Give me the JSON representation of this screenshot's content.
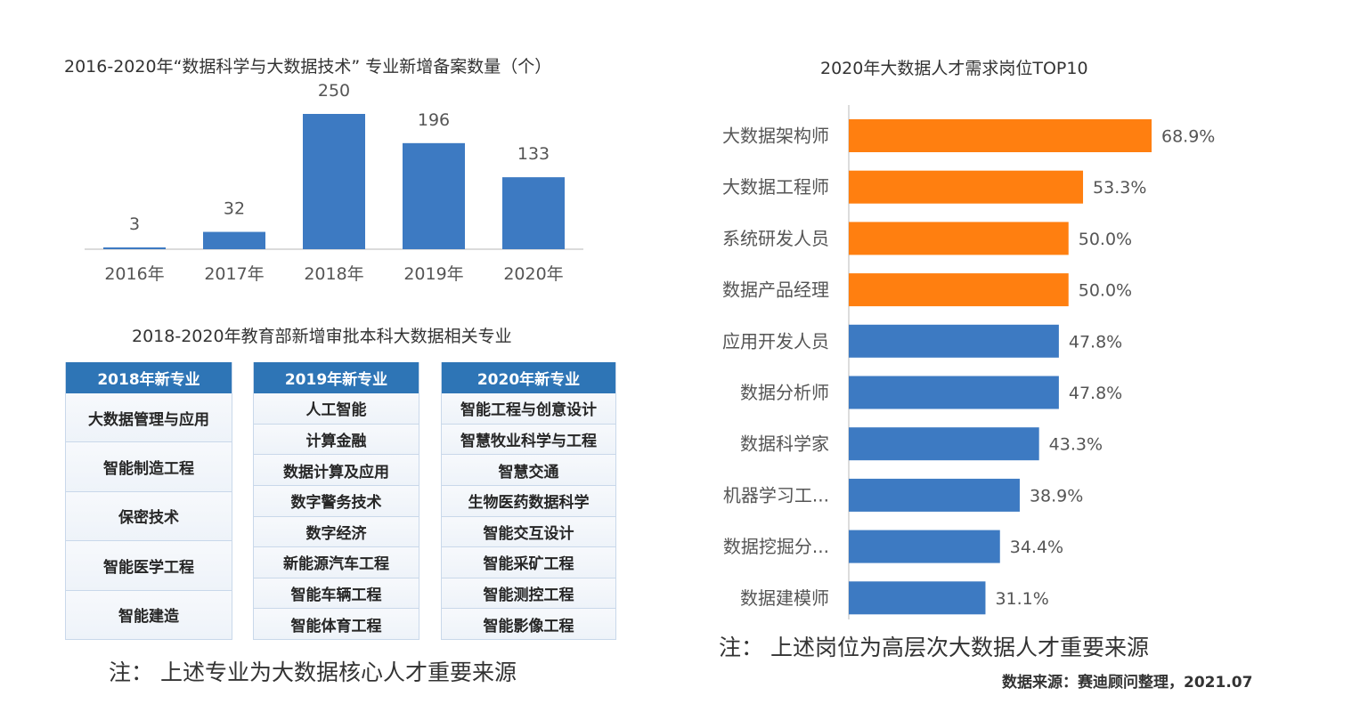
{
  "chart_data": [
    {
      "type": "bar",
      "title": "2016-2020年“数据科学与大数据技术” 专业新增备案数量（个）",
      "categories": [
        "2016年",
        "2017年",
        "2018年",
        "2019年",
        "2020年"
      ],
      "values": [
        3,
        32,
        250,
        196,
        133
      ],
      "value_labels": [
        "3",
        "32",
        "250",
        "196",
        "133"
      ],
      "ylim": [
        0,
        250
      ],
      "grid": false,
      "bar_color": "#3d7ac2"
    },
    {
      "type": "bar",
      "orientation": "horizontal",
      "title": "2020年大数据人才需求岗位TOP10",
      "categories": [
        "大数据架构师",
        "大数据工程师",
        "系统研发人员",
        "数据产品经理",
        "应用开发人员",
        "数据分析师",
        "数据科学家",
        "机器学习工...",
        "数据挖掘分...",
        "数据建模师"
      ],
      "values": [
        68.9,
        53.3,
        50.0,
        50.0,
        47.8,
        47.8,
        43.3,
        38.9,
        34.4,
        31.1
      ],
      "value_labels": [
        "68.9%",
        "53.3%",
        "50.0%",
        "50.0%",
        "47.8%",
        "47.8%",
        "43.3%",
        "38.9%",
        "34.4%",
        "31.1%"
      ],
      "highlight_count": 4,
      "highlight_color": "#ff7f10",
      "bar_color": "#3d7ac2",
      "grid": false
    }
  ],
  "majors_table": {
    "title": "2018-2020年教育部新增审批本科大数据相关专业",
    "columns": [
      {
        "header": "2018年新专业",
        "items": [
          "大数据管理与应用",
          "智能制造工程",
          "保密技术",
          "智能医学工程",
          "智能建造"
        ]
      },
      {
        "header": "2019年新专业",
        "items": [
          "人工智能",
          "计算金融",
          "数据计算及应用",
          "数字警务技术",
          "数字经济",
          "新能源汽车工程",
          "智能车辆工程",
          "智能体育工程"
        ]
      },
      {
        "header": "2020年新专业",
        "items": [
          "智能工程与创意设计",
          "智慧牧业科学与工程",
          "智慧交通",
          "生物医药数据科学",
          "智能交互设计",
          "智能采矿工程",
          "智能测控工程",
          "智能影像工程"
        ]
      }
    ],
    "header_color": "#2e75b6"
  },
  "notes": {
    "left": "注：  上述专业为大数据核心人才重要来源",
    "right": "注：  上述岗位为高层次大数据人才重要来源",
    "source": "数据来源：赛迪顾问整理，2021.07"
  }
}
